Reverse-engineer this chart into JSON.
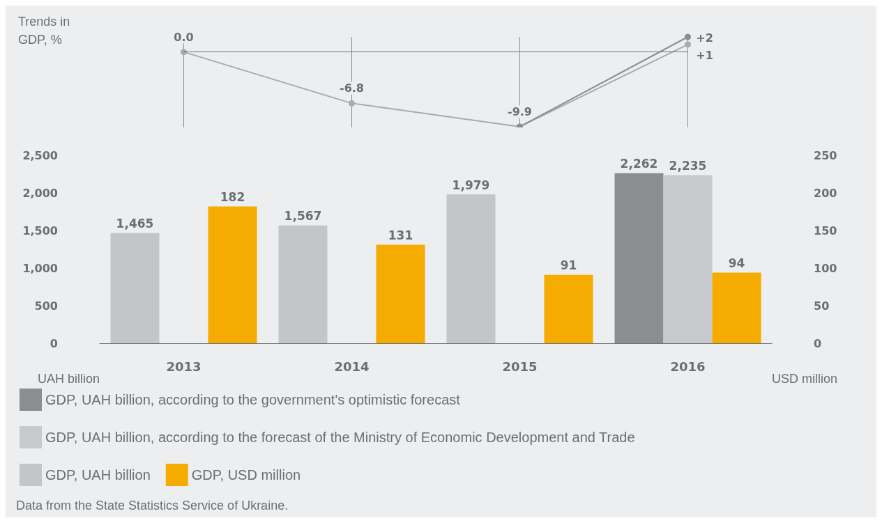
{
  "chart_data": [
    {
      "type": "line",
      "ylabel": "Trends in GDP, %",
      "categories": [
        "2013",
        "2014",
        "2015",
        "2016"
      ],
      "series": [
        {
          "color": "#a9aaae",
          "values": [
            0.0,
            -6.8,
            -9.9,
            1
          ],
          "value_labels": [
            "0.0",
            "-6.8",
            "-9.9",
            "+1"
          ]
        },
        {
          "color": "#8c8d91",
          "values": [
            null,
            null,
            -9.9,
            2
          ],
          "value_labels": [
            null,
            null,
            null,
            "+2"
          ]
        }
      ],
      "marker": "circle",
      "line_style": "solid",
      "grid": "x",
      "tick_labels": false,
      "legend": false,
      "ref_lines": [
        {
          "axis": "y",
          "value": 0,
          "color": "#6d6e71"
        }
      ]
    },
    {
      "type": "bar",
      "xlabel": null,
      "ylabel": "UAH billion",
      "y2label": "USD million",
      "categories": [
        "2013",
        "2014",
        "2015",
        "2016"
      ],
      "series": [
        {
          "name": "GDP, UAH billion, according to the government's optimistic forecast",
          "color": "#8c8d91",
          "values": [
            null,
            null,
            null,
            2262
          ],
          "value_labels": [
            null,
            null,
            null,
            "2,262"
          ]
        },
        {
          "name": "GDP, UAH billion, according to the forecast of the Ministry of Economic Development and Trade",
          "color": "#c8c9cc",
          "values": [
            null,
            null,
            null,
            2235
          ],
          "value_labels": [
            null,
            null,
            null,
            "2,235"
          ]
        },
        {
          "name": "GDP, UAH billion",
          "color": "#c4c5c9",
          "values": [
            1465,
            1567,
            1979,
            null
          ],
          "value_labels": [
            "1,465",
            "1,567",
            "1,979",
            null
          ]
        },
        {
          "name": "GDP, USD million",
          "color": "#f5ab00",
          "axis": "y2",
          "values": [
            182,
            131,
            91,
            94
          ],
          "value_labels": [
            "182",
            "131",
            "91",
            "94"
          ]
        }
      ],
      "ylim": [
        0,
        2500
      ],
      "yticks": [
        0,
        500,
        {
          "value": 1000,
          "label": "1,000"
        },
        {
          "value": 1500,
          "label": "1,500"
        },
        {
          "value": 2000,
          "label": "2,000"
        },
        {
          "value": 2500,
          "label": "2,500"
        }
      ],
      "y2lim": [
        0,
        250
      ],
      "y2ticks": [
        0,
        50,
        100,
        150,
        200,
        250
      ],
      "grid": false,
      "legend": "bottom left",
      "annotations": [
        "Data from the State Statistics Service of Ukraine."
      ]
    }
  ]
}
